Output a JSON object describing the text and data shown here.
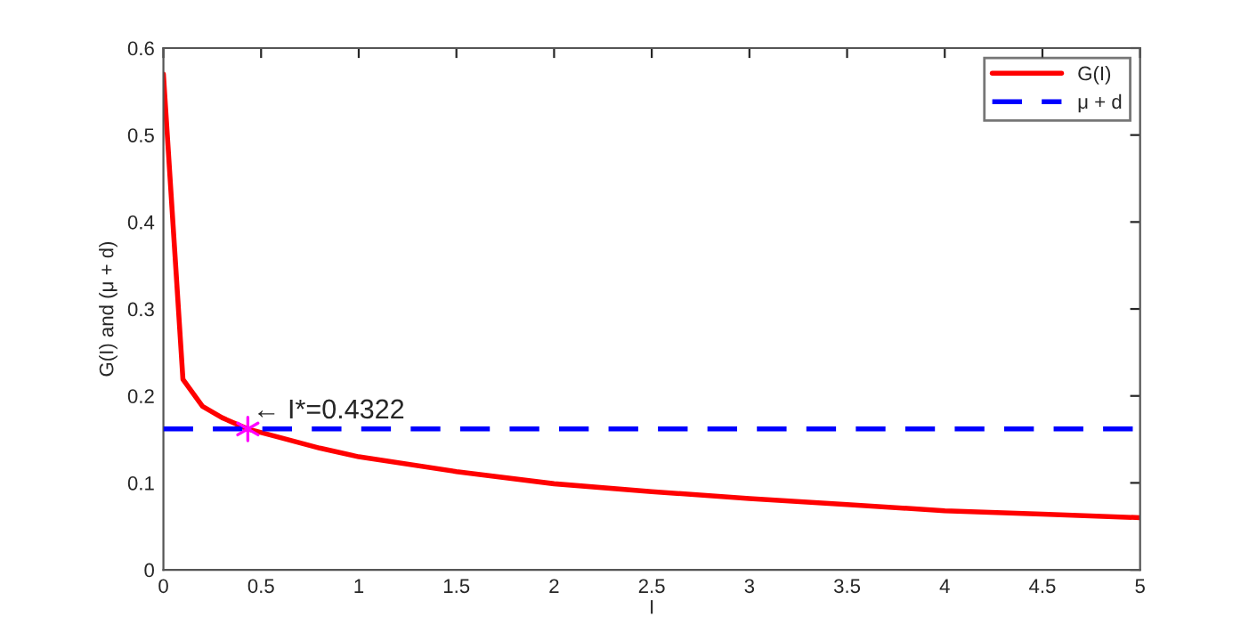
{
  "chart_data": {
    "type": "line",
    "xlabel": "I",
    "ylabel": "G(I) and (μ + d)",
    "xlim": [
      0,
      5
    ],
    "xticks": [
      0,
      0.5,
      1,
      1.5,
      2,
      2.5,
      3,
      3.5,
      4,
      4.5,
      5
    ],
    "ylim": [
      0,
      0.6
    ],
    "yticks": [
      0,
      0.1,
      0.2,
      0.3,
      0.4,
      0.5,
      0.6
    ],
    "series": [
      {
        "name": "G(I)",
        "color": "#ff0000",
        "line_style": "solid",
        "marker": "none",
        "x": [
          0,
          0.1,
          0.2,
          0.3,
          0.4322,
          0.6,
          0.8,
          1,
          1.5,
          2,
          2.5,
          3,
          3.5,
          4,
          4.5,
          5
        ],
        "values": [
          0.57,
          0.219,
          0.188,
          0.175,
          0.162,
          0.152,
          0.14,
          0.13,
          0.113,
          0.099,
          0.09,
          0.082,
          0.075,
          0.068,
          0.064,
          0.06
        ]
      },
      {
        "type": "scatter",
        "color": "#ff00ff",
        "marker": "cross",
        "x": [
          0.4322
        ],
        "values": [
          0.162
        ]
      }
    ],
    "ref_lines": [
      {
        "axis": "y",
        "value": 0.162,
        "label": "μ + d",
        "color": "#0000ff",
        "line_style": "dashed"
      }
    ],
    "annotations": [
      {
        "text": "← I*=0.4322",
        "x": 0.4322,
        "y": 0.162
      }
    ],
    "legend": "top right",
    "grid": false
  }
}
